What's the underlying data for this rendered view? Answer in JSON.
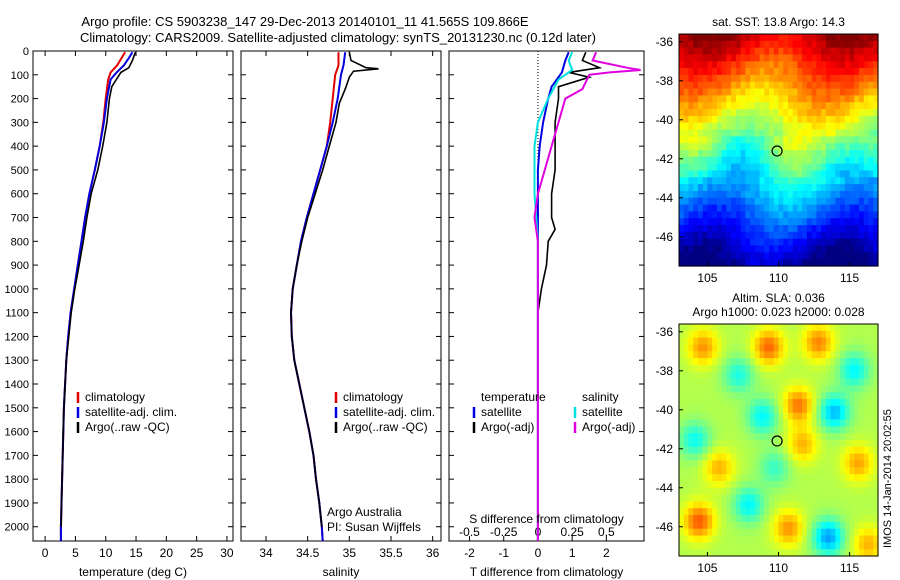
{
  "header": {
    "line1": "Argo profile: CS 5903238_147 29-Dec-2013 20140101_11 41.565S 109.866E",
    "line2": "Climatology: CARS2009. Satellite-adjusted climatology: synTS_20131230.nc (0.12d later)"
  },
  "colors": {
    "climatology": "#e00000",
    "satellite": "#0000e0",
    "argo": "#000000",
    "satellite_s": "#00e0e0",
    "argo_s": "#e000e0"
  },
  "chart_data": [
    {
      "id": "temperature",
      "type": "line",
      "xlabel": "temperature (deg C)",
      "ylabel": "",
      "xlim": [
        -2,
        31
      ],
      "ylim": [
        2060,
        0
      ],
      "x_ticks": [
        0,
        5,
        10,
        15,
        20,
        25,
        30
      ],
      "y_ticks": [
        0,
        100,
        200,
        300,
        400,
        500,
        600,
        700,
        800,
        900,
        1000,
        1100,
        1200,
        1300,
        1400,
        1500,
        1600,
        1700,
        1800,
        1900,
        2000
      ],
      "legend": [
        "climatology",
        "satellite-adj. clim.",
        "Argo(..raw -QC)"
      ],
      "legend_position": "lower-right",
      "series": [
        {
          "name": "climatology",
          "color_key": "climatology",
          "points": [
            [
              13.2,
              5
            ],
            [
              12.6,
              30
            ],
            [
              11.9,
              60
            ],
            [
              10.8,
              90
            ],
            [
              10.4,
              120
            ],
            [
              10.0,
              200
            ],
            [
              9.6,
              300
            ],
            [
              9.0,
              400
            ],
            [
              8.2,
              500
            ],
            [
              7.3,
              600
            ],
            [
              6.6,
              700
            ],
            [
              6.0,
              800
            ],
            [
              5.4,
              900
            ],
            [
              4.8,
              1000
            ],
            [
              4.2,
              1100
            ],
            [
              3.8,
              1200
            ],
            [
              3.5,
              1300
            ],
            [
              3.3,
              1400
            ],
            [
              3.1,
              1500
            ],
            [
              3.0,
              1600
            ],
            [
              2.9,
              1700
            ],
            [
              2.8,
              1800
            ],
            [
              2.7,
              1900
            ],
            [
              2.6,
              2000
            ],
            [
              2.6,
              2060
            ]
          ]
        },
        {
          "name": "satellite-adj. clim.",
          "color_key": "satellite",
          "points": [
            [
              14.4,
              5
            ],
            [
              13.8,
              30
            ],
            [
              13.0,
              60
            ],
            [
              11.8,
              90
            ],
            [
              10.8,
              120
            ],
            [
              10.2,
              200
            ],
            [
              9.7,
              300
            ],
            [
              9.0,
              400
            ],
            [
              8.2,
              500
            ],
            [
              7.3,
              600
            ],
            [
              6.6,
              700
            ],
            [
              6.0,
              800
            ],
            [
              5.4,
              900
            ],
            [
              4.8,
              1000
            ],
            [
              4.2,
              1100
            ],
            [
              3.8,
              1200
            ],
            [
              3.5,
              1300
            ],
            [
              3.3,
              1400
            ],
            [
              3.1,
              1500
            ],
            [
              3.0,
              1600
            ],
            [
              2.9,
              1700
            ],
            [
              2.8,
              1800
            ],
            [
              2.7,
              1900
            ],
            [
              2.6,
              2000
            ],
            [
              2.6,
              2060
            ]
          ]
        },
        {
          "name": "Argo(..raw -QC)",
          "color_key": "argo",
          "points": [
            [
              14.9,
              5
            ],
            [
              14.4,
              40
            ],
            [
              13.8,
              70
            ],
            [
              12.5,
              90
            ],
            [
              12.0,
              110
            ],
            [
              11.0,
              150
            ],
            [
              10.6,
              200
            ],
            [
              10.2,
              300
            ],
            [
              9.5,
              400
            ],
            [
              8.7,
              500
            ],
            [
              7.6,
              600
            ],
            [
              6.9,
              700
            ],
            [
              6.3,
              800
            ],
            [
              5.6,
              900
            ],
            [
              4.9,
              1000
            ],
            [
              4.3,
              1100
            ],
            [
              3.9,
              1200
            ],
            [
              3.5,
              1300
            ],
            [
              3.3,
              1400
            ],
            [
              3.1,
              1500
            ],
            [
              3.0,
              1600
            ],
            [
              2.9,
              1700
            ],
            [
              2.8,
              1800
            ],
            [
              2.7,
              1900
            ],
            [
              2.65,
              2000
            ]
          ]
        }
      ]
    },
    {
      "id": "salinity",
      "type": "line",
      "xlabel": "salinity",
      "ylabel": "",
      "xlim": [
        33.7,
        36.1
      ],
      "ylim": [
        2060,
        0
      ],
      "x_ticks": [
        34,
        34.5,
        35,
        35.5,
        36
      ],
      "legend": [
        "climatology",
        "satellite-adj. clim.",
        "Argo(..raw -QC)"
      ],
      "legend_position": "lower-right",
      "annotation": [
        "Argo Australia",
        "PI: Susan Wijffels"
      ],
      "series": [
        {
          "name": "climatology",
          "color_key": "climatology",
          "points": [
            [
              34.87,
              5
            ],
            [
              34.87,
              60
            ],
            [
              34.83,
              100
            ],
            [
              34.8,
              200
            ],
            [
              34.77,
              300
            ],
            [
              34.73,
              400
            ],
            [
              34.65,
              500
            ],
            [
              34.57,
              600
            ],
            [
              34.49,
              700
            ],
            [
              34.42,
              800
            ],
            [
              34.37,
              900
            ],
            [
              34.32,
              1000
            ],
            [
              34.3,
              1100
            ],
            [
              34.31,
              1200
            ],
            [
              34.34,
              1300
            ],
            [
              34.4,
              1400
            ],
            [
              34.46,
              1500
            ],
            [
              34.52,
              1600
            ],
            [
              34.57,
              1700
            ],
            [
              34.6,
              1800
            ],
            [
              34.64,
              1900
            ],
            [
              34.67,
              2000
            ],
            [
              34.68,
              2060
            ]
          ]
        },
        {
          "name": "satellite-adj. clim.",
          "color_key": "satellite",
          "points": [
            [
              34.95,
              5
            ],
            [
              34.93,
              60
            ],
            [
              34.9,
              100
            ],
            [
              34.86,
              200
            ],
            [
              34.8,
              300
            ],
            [
              34.73,
              400
            ],
            [
              34.65,
              500
            ],
            [
              34.57,
              600
            ],
            [
              34.49,
              700
            ],
            [
              34.42,
              800
            ],
            [
              34.37,
              900
            ],
            [
              34.32,
              1000
            ],
            [
              34.3,
              1100
            ],
            [
              34.31,
              1200
            ],
            [
              34.34,
              1300
            ],
            [
              34.4,
              1400
            ],
            [
              34.46,
              1500
            ],
            [
              34.52,
              1600
            ],
            [
              34.57,
              1700
            ],
            [
              34.6,
              1800
            ],
            [
              34.64,
              1900
            ],
            [
              34.67,
              2000
            ],
            [
              34.68,
              2060
            ]
          ]
        },
        {
          "name": "Argo(..raw -QC)",
          "color_key": "argo",
          "points": [
            [
              35.0,
              5
            ],
            [
              35.02,
              40
            ],
            [
              35.2,
              70
            ],
            [
              35.35,
              75
            ],
            [
              35.05,
              85
            ],
            [
              35.0,
              110
            ],
            [
              34.95,
              160
            ],
            [
              34.88,
              220
            ],
            [
              34.84,
              300
            ],
            [
              34.76,
              400
            ],
            [
              34.68,
              500
            ],
            [
              34.59,
              600
            ],
            [
              34.5,
              700
            ],
            [
              34.43,
              800
            ],
            [
              34.37,
              900
            ],
            [
              34.32,
              1000
            ],
            [
              34.3,
              1100
            ],
            [
              34.31,
              1200
            ],
            [
              34.34,
              1300
            ],
            [
              34.4,
              1400
            ],
            [
              34.46,
              1500
            ],
            [
              34.52,
              1600
            ],
            [
              34.57,
              1700
            ],
            [
              34.6,
              1800
            ],
            [
              34.64,
              1900
            ],
            [
              34.67,
              2000
            ]
          ]
        }
      ]
    },
    {
      "id": "difference",
      "type": "line",
      "xlabel": "T difference from climatology",
      "xlabel_top": "S difference from climatology",
      "xlim": [
        -2.6,
        3.1
      ],
      "ylim": [
        2060,
        0
      ],
      "x_ticks": [
        -2,
        -1,
        0,
        1,
        2
      ],
      "x_ticks_s_labels": [
        "-0.5",
        "-0.25",
        "0",
        "0.25",
        "0.5"
      ],
      "x_ticks_s_positions": [
        -2,
        -1,
        0,
        1,
        2
      ],
      "legend_title_t": "temperature",
      "legend_title_s": "salinity",
      "legend_t": [
        "satellite",
        "Argo(-adj)"
      ],
      "legend_s": [
        "satellite",
        "Argo(-adj)"
      ],
      "series": [
        {
          "name": "T satellite",
          "color_key": "satellite",
          "points": [
            [
              0.9,
              5
            ],
            [
              0.8,
              40
            ],
            [
              0.7,
              90
            ],
            [
              0.4,
              150
            ],
            [
              0.3,
              200
            ],
            [
              0.15,
              300
            ],
            [
              0.05,
              400
            ],
            [
              0.0,
              500
            ],
            [
              0.0,
              600
            ],
            [
              0.0,
              1000
            ],
            [
              0.0,
              2060
            ]
          ]
        },
        {
          "name": "T Argo(-adj)",
          "color_key": "argo",
          "points": [
            [
              1.4,
              5
            ],
            [
              1.3,
              40
            ],
            [
              1.8,
              70
            ],
            [
              0.9,
              90
            ],
            [
              1.5,
              110
            ],
            [
              0.6,
              150
            ],
            [
              0.6,
              200
            ],
            [
              0.5,
              300
            ],
            [
              0.5,
              400
            ],
            [
              0.5,
              500
            ],
            [
              0.4,
              600
            ],
            [
              0.4,
              700
            ],
            [
              0.5,
              750
            ],
            [
              0.3,
              800
            ],
            [
              0.25,
              900
            ],
            [
              0.1,
              1000
            ],
            [
              0.0,
              1100
            ],
            [
              0.0,
              1300
            ],
            [
              0.0,
              2000
            ]
          ]
        },
        {
          "name": "S satellite",
          "color_key": "satellite_s",
          "points": [
            [
              1.0,
              5
            ],
            [
              0.9,
              40
            ],
            [
              1.0,
              80
            ],
            [
              0.6,
              120
            ],
            [
              0.3,
              200
            ],
            [
              0.0,
              300
            ],
            [
              -0.1,
              400
            ],
            [
              -0.1,
              600
            ],
            [
              0.0,
              800
            ],
            [
              0.0,
              2060
            ]
          ]
        },
        {
          "name": "S Argo(-adj)",
          "color_key": "argo_s",
          "points": [
            [
              1.7,
              5
            ],
            [
              1.6,
              40
            ],
            [
              2.6,
              70
            ],
            [
              3.0,
              80
            ],
            [
              2.1,
              90
            ],
            [
              1.5,
              100
            ],
            [
              1.3,
              160
            ],
            [
              0.8,
              200
            ],
            [
              0.6,
              300
            ],
            [
              0.4,
              400
            ],
            [
              0.2,
              500
            ],
            [
              0.0,
              600
            ],
            [
              -0.1,
              700
            ],
            [
              0.0,
              800
            ],
            [
              0.0,
              2060
            ]
          ]
        }
      ]
    },
    {
      "id": "sst_map",
      "type": "heatmap",
      "title": "sat. SST: 13.8 Argo: 14.3",
      "xlim": [
        103,
        117
      ],
      "ylim": [
        -47.5,
        -35.6
      ],
      "x_ticks": [
        105,
        110,
        115
      ],
      "y_ticks": [
        -36,
        -38,
        -40,
        -42,
        -44,
        -46
      ],
      "marker": [
        109.9,
        -41.6
      ]
    },
    {
      "id": "sla_map",
      "type": "heatmap",
      "title_line1": "Altim. SLA: 0.036",
      "title_line2": "Argo h1000: 0.023 h2000: 0.028",
      "xlim": [
        103,
        117
      ],
      "ylim": [
        -47.5,
        -35.6
      ],
      "x_ticks": [
        105,
        110,
        115
      ],
      "y_ticks": [
        -36,
        -38,
        -40,
        -42,
        -44,
        -46
      ],
      "marker": [
        109.9,
        -41.6
      ]
    }
  ],
  "footer": {
    "stamp": "IMOS 14-Jan-2014 20:02:55"
  }
}
